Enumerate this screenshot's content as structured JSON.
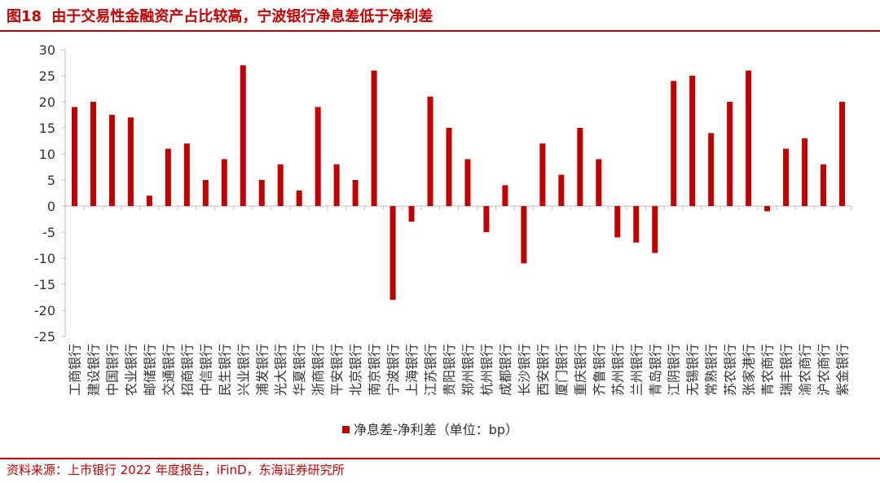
{
  "figure": {
    "label": "图18",
    "title": "由于交易性金融资产占比较高，宁波银行净息差低于净利差"
  },
  "source": "资料来源：上市银行 2022 年度报告，iFinD，东海证券研究所",
  "colors": {
    "accent": "#c00000",
    "bar": "#c00000",
    "axis": "#bfbfbf",
    "text": "#333333"
  },
  "chart_data": {
    "type": "bar",
    "title": "由于交易性金融资产占比较高，宁波银行净息差低于净利差",
    "xlabel": "",
    "ylabel": "",
    "ylim": [
      -25,
      30
    ],
    "yticks": [
      30,
      25,
      20,
      15,
      10,
      5,
      0,
      -5,
      -10,
      -15,
      -20,
      -25
    ],
    "grid": false,
    "legend_position": "bottom",
    "categories": [
      "工商银行",
      "建设银行",
      "中国银行",
      "农业银行",
      "邮储银行",
      "交通银行",
      "招商银行",
      "中信银行",
      "民生银行",
      "兴业银行",
      "浦发银行",
      "光大银行",
      "华夏银行",
      "浙商银行",
      "平安银行",
      "北京银行",
      "南京银行",
      "宁波银行",
      "上海银行",
      "江苏银行",
      "贵阳银行",
      "郑州银行",
      "杭州银行",
      "成都银行",
      "长沙银行",
      "西安银行",
      "厦门银行",
      "重庆银行",
      "齐鲁银行",
      "苏州银行",
      "兰州银行",
      "青岛银行",
      "江阴银行",
      "无锡银行",
      "常熟银行",
      "苏农银行",
      "张家港行",
      "青农商行",
      "瑞丰银行",
      "渝农商行",
      "沪农商行",
      "紫金银行"
    ],
    "series": [
      {
        "name": "净息差-净利差（单位：bp）",
        "values": [
          19,
          20,
          17.5,
          17,
          2,
          11,
          12,
          5,
          9,
          27,
          5,
          8,
          3,
          19,
          8,
          5,
          26,
          -18,
          -3,
          21,
          15,
          9,
          -5,
          4,
          -11,
          12,
          6,
          15,
          9,
          -6,
          -7,
          -9,
          24,
          25,
          14,
          20,
          26,
          -1,
          11,
          13,
          8,
          20
        ]
      }
    ]
  }
}
